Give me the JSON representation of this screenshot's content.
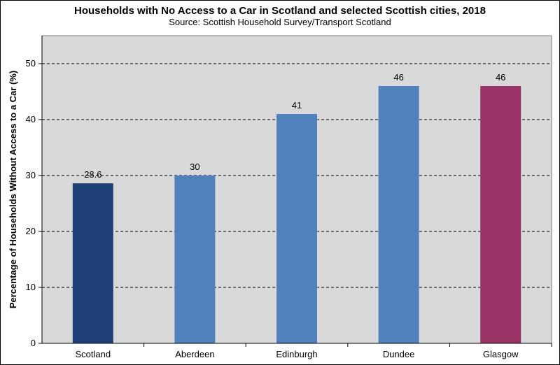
{
  "chart_data": {
    "type": "bar",
    "title": "Households with No Access to a Car in Scotland and selected Scottish cities, 2018",
    "subtitle": "Source:  Scottish Household  Survey/Transport  Scotland",
    "xlabel": "",
    "ylabel": "Percentage of Households Without Access to a Car (%)",
    "categories": [
      "Scotland",
      "Aberdeen",
      "Edinburgh",
      "Dundee",
      "Glasgow"
    ],
    "values": [
      28.6,
      30,
      41,
      46,
      46
    ],
    "data_labels": [
      "28.6",
      "30",
      "41",
      "46",
      "46"
    ],
    "colors": [
      "#1f3f77",
      "#4f81bd",
      "#4f81bd",
      "#4f81bd",
      "#993366"
    ],
    "ylim": [
      0,
      55
    ],
    "yticks": [
      0,
      10,
      20,
      30,
      40,
      50
    ],
    "grid": true,
    "plot_background": "#d9d9d9",
    "legend": "none"
  }
}
